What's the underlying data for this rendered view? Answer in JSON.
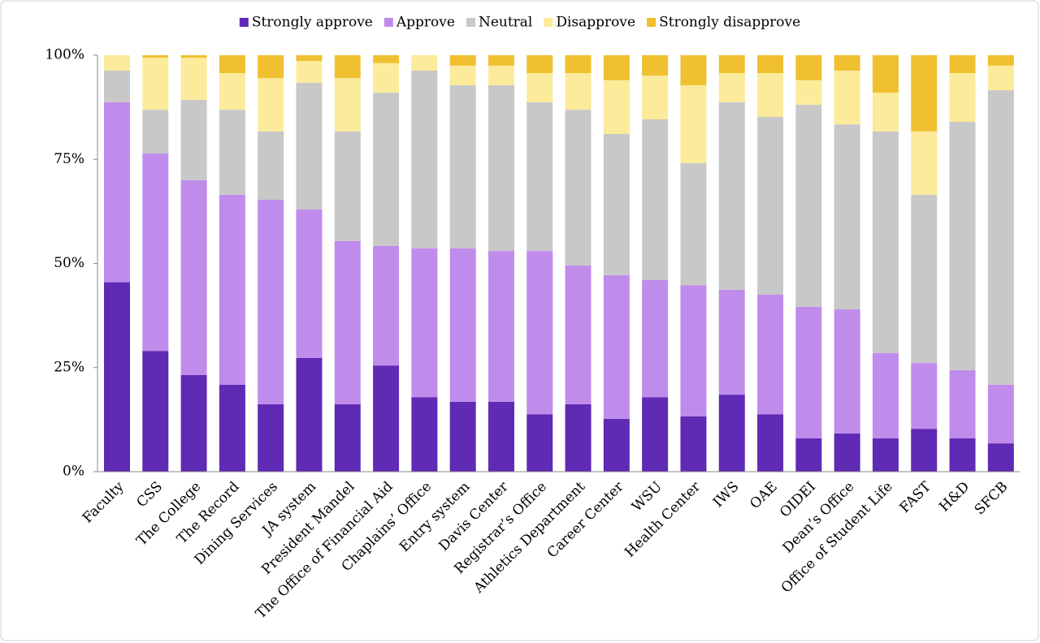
{
  "chart_data": {
    "type": "stacked_bar_100",
    "categories": [
      "Faculty",
      "CSS",
      "The College",
      "The Record",
      "Dining Services",
      "JA system",
      "President Mandel",
      "The Office of Financial Aid",
      "Chaplains’ Office",
      "Entry system",
      "Davis Center",
      "Registrar’s Office",
      "Athletics Department",
      "Career Center",
      "WSU",
      "Health Center",
      "IWS",
      "OAE",
      "OIDEI",
      "Dean’s Office",
      "Office of Student Life",
      "FAST",
      "H&D",
      "SFCB"
    ],
    "series": [
      {
        "name": "Strongly approve",
        "color": "#5f2ab4",
        "values": [
          45.5,
          29.0,
          23.2,
          20.9,
          16.2,
          27.3,
          16.2,
          25.5,
          17.9,
          16.8,
          16.8,
          13.8,
          16.2,
          12.7,
          17.9,
          13.3,
          18.5,
          13.8,
          8.0,
          9.2,
          8.0,
          10.3,
          8.0,
          6.8
        ]
      },
      {
        "name": "Approve",
        "color": "#c08ceb",
        "values": [
          43.2,
          47.4,
          46.8,
          45.6,
          49.1,
          35.7,
          39.2,
          28.7,
          35.7,
          36.8,
          36.2,
          39.2,
          33.3,
          34.5,
          28.1,
          31.5,
          25.2,
          28.7,
          31.6,
          29.8,
          20.5,
          15.8,
          16.4,
          14.1
        ]
      },
      {
        "name": "Neutral",
        "color": "#c8c8c8",
        "values": [
          7.6,
          10.5,
          19.3,
          20.4,
          16.4,
          30.4,
          26.3,
          36.8,
          42.7,
          39.2,
          39.8,
          35.7,
          37.4,
          33.9,
          38.6,
          29.3,
          45.0,
          42.7,
          48.5,
          44.4,
          53.2,
          40.4,
          59.6,
          70.7
        ]
      },
      {
        "name": "Disapprove",
        "color": "#fbeb9b",
        "values": [
          3.7,
          12.5,
          10.1,
          8.8,
          12.8,
          5.2,
          12.8,
          7.1,
          3.7,
          4.7,
          4.7,
          7.0,
          8.8,
          12.9,
          10.5,
          18.7,
          7.0,
          10.5,
          5.9,
          12.9,
          9.3,
          15.2,
          11.7,
          5.9
        ]
      },
      {
        "name": "Strongly disapprove",
        "color": "#f0c030",
        "values": [
          0,
          0.6,
          0.6,
          4.3,
          5.5,
          1.4,
          5.5,
          1.9,
          0,
          2.5,
          2.5,
          4.3,
          4.3,
          6.0,
          4.9,
          7.2,
          4.3,
          4.3,
          6.0,
          3.7,
          9.0,
          18.3,
          4.3,
          2.5
        ]
      }
    ],
    "ylim": [
      0,
      100
    ],
    "yticks": [
      {
        "value": 0,
        "label": "0%"
      },
      {
        "value": 25,
        "label": "25%"
      },
      {
        "value": 50,
        "label": "50%"
      },
      {
        "value": 75,
        "label": "75%"
      },
      {
        "value": 100,
        "label": "100%"
      }
    ],
    "legend": "top"
  }
}
